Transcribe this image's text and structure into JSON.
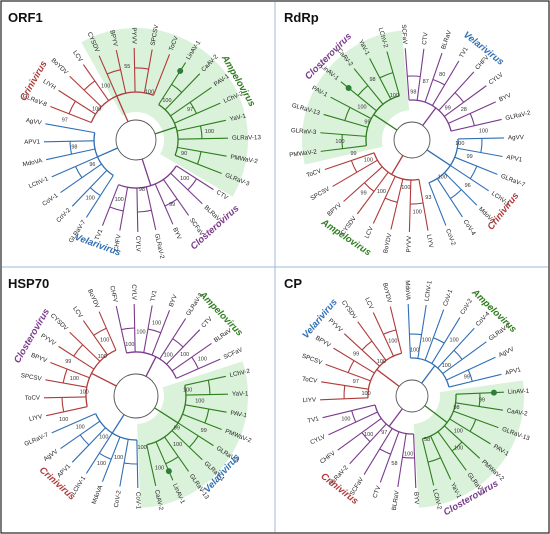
{
  "panels": [
    {
      "id": "orf1",
      "title": "ORF1",
      "genera": [
        {
          "key": "ampelovirus",
          "name": "Ampelovirus",
          "color": "#2e7d1e"
        },
        {
          "key": "crinivirus",
          "name": "Crinivirus",
          "color": "#b03a3a"
        },
        {
          "key": "velarivirus",
          "name": "Velarivirus",
          "color": "#2f6fb5"
        },
        {
          "key": "closterovirus",
          "name": "Closterovirus",
          "color": "#7a3b8c"
        }
      ],
      "taxa": [
        "LinAV-1",
        "CaAV-2",
        "PAV-1",
        "LChV-2",
        "YaV-1",
        "GLRaV-13",
        "PMWaV-2",
        "GLRaV-3",
        "CTV",
        "BLRaV",
        "SCFaV",
        "BYV",
        "GLRaV-2",
        "CYLV",
        "CHFV",
        "TV1",
        "GLRaV-7",
        "CoV-2",
        "CoV-1",
        "LChV-1",
        "MdoVA",
        "APV1",
        "AgVV",
        "GLRaV-8",
        "LIYH",
        "BoYDV",
        "LCV",
        "CYSDV",
        "BPYV",
        "PYVV",
        "SPCSV",
        "ToCV"
      ],
      "bootstrap": [
        "100",
        "97",
        "100",
        "90",
        "100",
        "99",
        "98",
        "100",
        "100",
        "96",
        "98",
        "97",
        "100",
        "100",
        "55",
        "100"
      ]
    },
    {
      "id": "rdrp",
      "title": "RdRp",
      "genera": [
        {
          "key": "closterovirus",
          "name": "Closterovirus",
          "color": "#7a3b8c"
        },
        {
          "key": "velarivirus",
          "name": "Velarivirus",
          "color": "#2f6fb5"
        },
        {
          "key": "ampelovirus",
          "name": "Ampelovirus",
          "color": "#2e7d1e"
        },
        {
          "key": "crinivirus",
          "name": "Crinivirus",
          "color": "#b03a3a"
        }
      ],
      "taxa": [
        "SCFaV",
        "CTV",
        "BLRaV",
        "TV1",
        "CHFV",
        "CYLV",
        "BYV",
        "GLRaV-2",
        "AgVV",
        "APV1",
        "GLRaV-7",
        "LChV-1",
        "MdoVA",
        "CoV-4",
        "CoV-2",
        "LIYV",
        "PYVV",
        "BoYDV",
        "LCV",
        "CYSDV",
        "BPYV",
        "SPCSV",
        "ToCV",
        "PMWaV-2",
        "GLRaV-3",
        "GLRaV-13",
        "PAV-1",
        "LinAV-1",
        "CaAV-2",
        "YaV-1",
        "LChV-2"
      ],
      "bootstrap": [
        "98",
        "87",
        "80",
        "99",
        "28",
        "100",
        "100",
        "99",
        "96",
        "100",
        "93",
        "100",
        "100",
        "100",
        "99",
        "100",
        "99",
        "100",
        "99",
        "100",
        "98",
        "100"
      ]
    },
    {
      "id": "hsp70",
      "title": "HSP70",
      "genera": [
        {
          "key": "closterovirus",
          "name": "Closterovirus",
          "color": "#7a3b8c"
        },
        {
          "key": "ampelovirus",
          "name": "Ampelovirus",
          "color": "#2e7d1e"
        },
        {
          "key": "crinivirus",
          "name": "Crinivirus",
          "color": "#b03a3a"
        },
        {
          "key": "velarivirus",
          "name": "Velarivirus",
          "color": "#2f6fb5"
        }
      ],
      "taxa": [
        "CHFV",
        "CYLV",
        "TV1",
        "BYV",
        "GLRaV-2",
        "CTV",
        "BLRaV",
        "SCFaV",
        "LChV-2",
        "YaV-1",
        "PAV-1",
        "PMWaV-2",
        "GLRaV-3",
        "GLRaV-1",
        "GLRaV-13",
        "LinAV-1",
        "CaAV-2",
        "CoV-1",
        "CoV-2",
        "MdoVA",
        "LChV-1",
        "APV1",
        "AgVV",
        "GLRaV-7",
        "LIYV",
        "ToCV",
        "SPCSV",
        "BPYV",
        "PYVV",
        "CYSDV",
        "LCV",
        "BoYDV"
      ],
      "bootstrap": [
        "100",
        "100",
        "100",
        "100",
        "100",
        "100",
        "100",
        "100",
        "99",
        "99",
        "100",
        "100",
        "100",
        "100",
        "100",
        "100",
        "100",
        "100",
        "100",
        "100",
        "99",
        "100",
        "100"
      ]
    },
    {
      "id": "cp",
      "title": "CP",
      "genera": [
        {
          "key": "velarivirus",
          "name": "Velarivirus",
          "color": "#2f6fb5"
        },
        {
          "key": "ampelovirus",
          "name": "Ampelovirus",
          "color": "#2e7d1e"
        },
        {
          "key": "crinivirus",
          "name": "Crinivirus",
          "color": "#b03a3a"
        },
        {
          "key": "closterovirus",
          "name": "Closterovirus",
          "color": "#7a3b8c"
        }
      ],
      "taxa": [
        "MdoVA",
        "LChV-1",
        "CoV-1",
        "CoV-2",
        "CoV-4",
        "GLRaV-7",
        "AgVV",
        "APV1",
        "LinAV-1",
        "CaAV-2",
        "GLRaV-13",
        "PAV-1",
        "PMWaV-2",
        "GLRaV-3",
        "YaV-1",
        "LChV-2",
        "BYV",
        "BLRaV",
        "CTV",
        "SCFaV",
        "GLRaV-2",
        "CHFV",
        "CYLV",
        "TV1",
        "LIYV",
        "ToCV",
        "SPCSV",
        "BPYV",
        "PYVV",
        "CYSDV",
        "LCV",
        "BoYDV"
      ],
      "bootstrap": [
        "100",
        "100",
        "100",
        "100",
        "99",
        "99",
        "98",
        "100",
        "100",
        "58",
        "100",
        "58",
        "97",
        "100",
        "100",
        "100",
        "97",
        "99",
        "100",
        "100"
      ]
    }
  ],
  "colors": {
    "crinivirus": "#b03a3a",
    "ampelovirus": "#2e7d1e",
    "velarivirus": "#2f6fb5",
    "closterovirus": "#7a3b8c",
    "highlight": "#cdeecd",
    "border": "#222222",
    "divider": "#9fb8d8"
  }
}
